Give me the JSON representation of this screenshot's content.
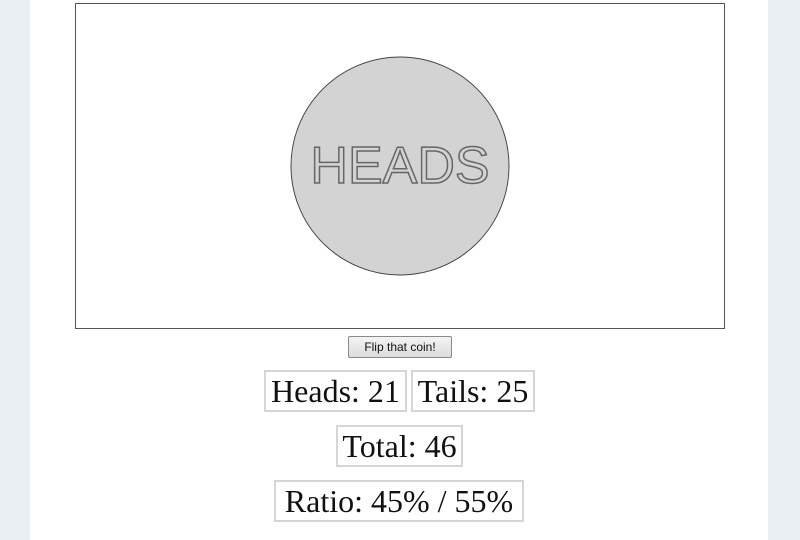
{
  "coin": {
    "face": "HEADS"
  },
  "button": {
    "label": "Flip that coin!"
  },
  "stats": {
    "heads": "Heads: 21",
    "tails": "Tails: 25",
    "total": "Total: 46",
    "ratio": "Ratio: 45% / 55%"
  }
}
